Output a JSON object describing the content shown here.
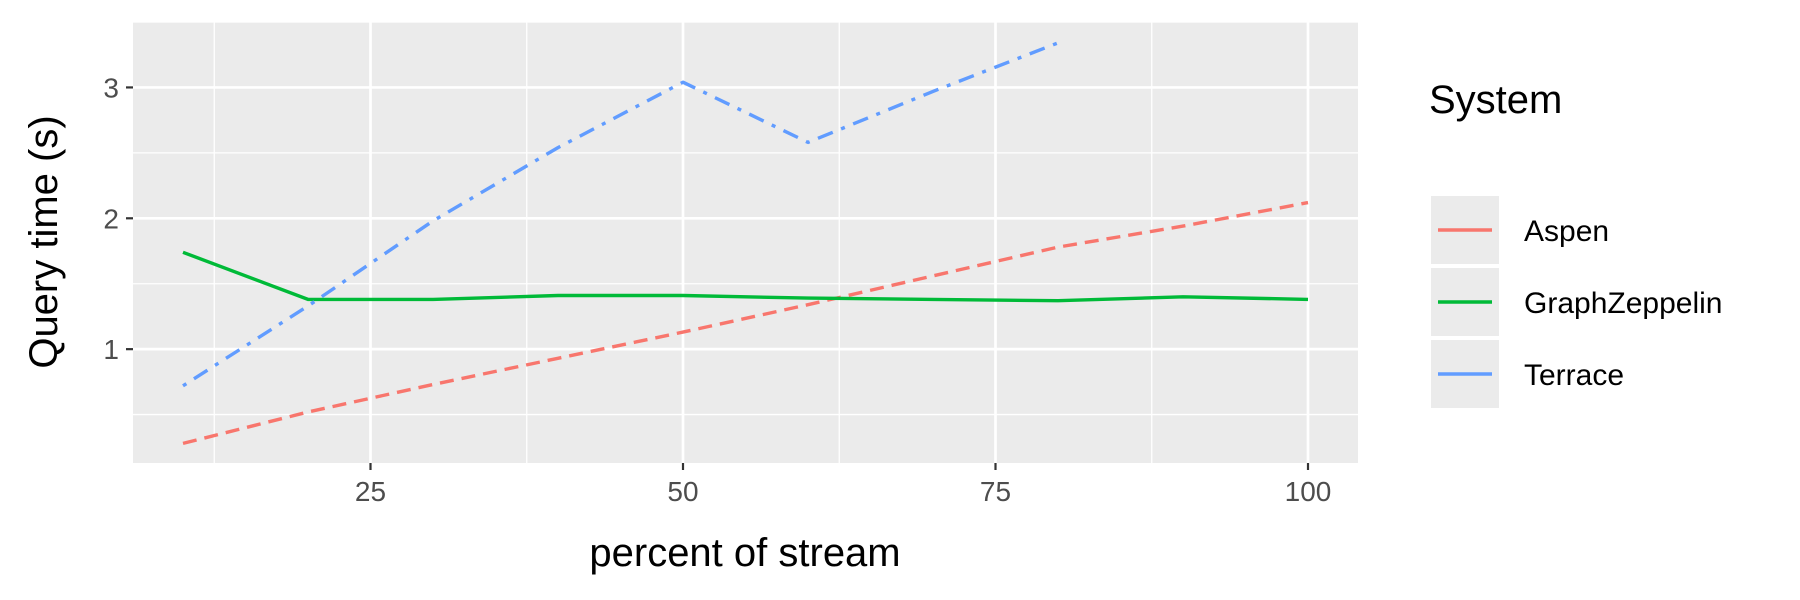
{
  "chart_data": {
    "type": "line",
    "xlabel": "percent of stream",
    "ylabel": "Query time (s)",
    "xlim": [
      6,
      104
    ],
    "ylim": [
      0.13,
      3.5
    ],
    "x_ticks": [
      25,
      50,
      75,
      100
    ],
    "x_tick_labels": [
      "25",
      "50",
      "75",
      "100"
    ],
    "y_ticks": [
      1,
      2,
      3
    ],
    "y_tick_labels": [
      "1",
      "2",
      "3"
    ],
    "grid": true,
    "legend": {
      "title": "System",
      "position": "right"
    },
    "series": [
      {
        "name": "Aspen",
        "color": "#F8766D",
        "dash": "dashed",
        "x": [
          10,
          20,
          30,
          40,
          50,
          60,
          70,
          80,
          90,
          100
        ],
        "y": [
          0.28,
          0.52,
          0.73,
          0.93,
          1.13,
          1.34,
          1.56,
          1.78,
          1.94,
          2.12
        ]
      },
      {
        "name": "GraphZeppelin",
        "color": "#00BA38",
        "dash": "solid",
        "x": [
          10,
          20,
          30,
          40,
          50,
          60,
          70,
          80,
          90,
          100
        ],
        "y": [
          1.74,
          1.38,
          1.38,
          1.41,
          1.41,
          1.39,
          1.38,
          1.37,
          1.4,
          1.38
        ]
      },
      {
        "name": "Terrace",
        "color": "#619CFF",
        "dash": "dotdash",
        "x": [
          10,
          20,
          30,
          40,
          50,
          60,
          70,
          80
        ],
        "y": [
          0.72,
          1.33,
          1.98,
          2.54,
          3.04,
          2.58,
          2.97,
          3.34
        ]
      }
    ]
  }
}
